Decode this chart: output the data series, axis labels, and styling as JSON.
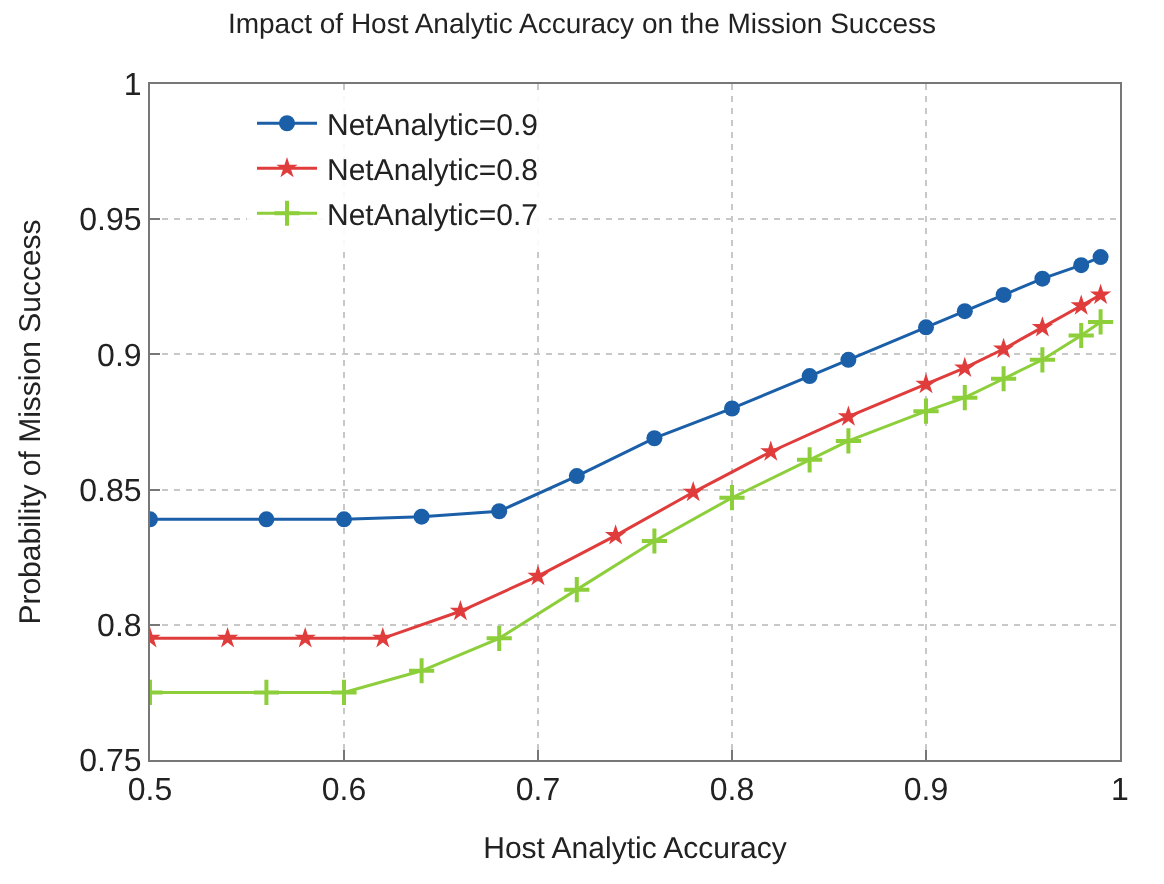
{
  "chart_data": {
    "type": "line",
    "title": "Impact of Host Analytic Accuracy on the Mission Success",
    "xlabel": "Host Analytic Accuracy",
    "ylabel": "Probability of Mission Success",
    "xlim": [
      0.5,
      1
    ],
    "xticks": [
      0.5,
      0.6,
      0.7,
      0.8,
      0.9,
      1
    ],
    "ylim": [
      0.75,
      1
    ],
    "yticks": [
      0.75,
      0.8,
      0.85,
      0.9,
      0.95,
      1
    ],
    "grid": true,
    "legend": "top left",
    "series": [
      {
        "name": "NetAnalytic=0.9",
        "color": "#1a5fa8",
        "marker": "circle",
        "x": [
          0.5,
          0.56,
          0.6,
          0.64,
          0.68,
          0.72,
          0.76,
          0.8,
          0.84,
          0.86,
          0.9,
          0.92,
          0.94,
          0.96,
          0.98,
          0.99
        ],
        "values": [
          0.839,
          0.839,
          0.839,
          0.84,
          0.842,
          0.855,
          0.869,
          0.88,
          0.892,
          0.898,
          0.91,
          0.916,
          0.922,
          0.928,
          0.933,
          0.936
        ]
      },
      {
        "name": "NetAnalytic=0.8",
        "color": "#e03c3c",
        "marker": "star",
        "x": [
          0.5,
          0.54,
          0.58,
          0.62,
          0.66,
          0.7,
          0.74,
          0.78,
          0.82,
          0.86,
          0.9,
          0.92,
          0.94,
          0.96,
          0.98,
          0.99
        ],
        "values": [
          0.795,
          0.795,
          0.795,
          0.795,
          0.805,
          0.818,
          0.833,
          0.849,
          0.864,
          0.877,
          0.889,
          0.895,
          0.902,
          0.91,
          0.918,
          0.922
        ]
      },
      {
        "name": "NetAnalytic=0.7",
        "color": "#8ccf3a",
        "marker": "cross",
        "x": [
          0.5,
          0.56,
          0.6,
          0.64,
          0.68,
          0.72,
          0.76,
          0.8,
          0.84,
          0.86,
          0.9,
          0.92,
          0.94,
          0.96,
          0.98,
          0.99
        ],
        "values": [
          0.775,
          0.775,
          0.775,
          0.783,
          0.795,
          0.813,
          0.831,
          0.847,
          0.861,
          0.868,
          0.879,
          0.884,
          0.891,
          0.898,
          0.907,
          0.912
        ]
      }
    ]
  }
}
